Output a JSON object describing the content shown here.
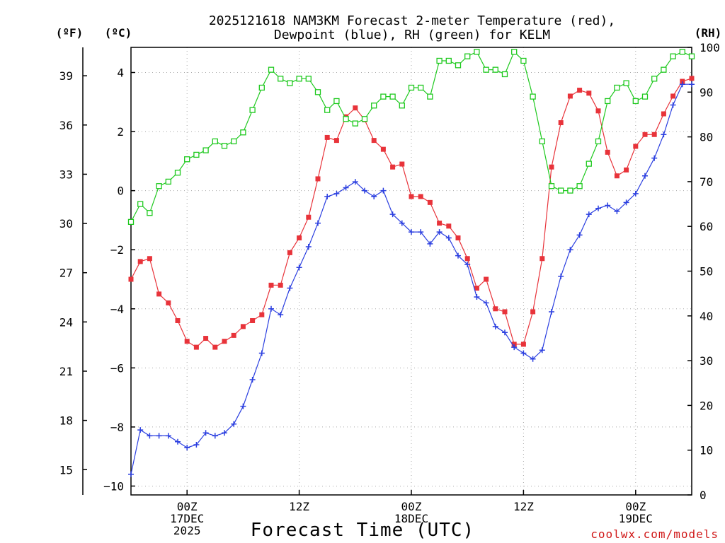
{
  "chart_data": {
    "type": "line",
    "title": [
      "2025121618 NAM3KM Forecast 2-meter Temperature (red),",
      "Dewpoint (blue), RH (green) for KELM"
    ],
    "xlabel": "Forecast Time (UTC)",
    "credit": "coolwx.com/models",
    "x_start_hours": 0,
    "x_end_hours": 60,
    "x_ticks": [
      {
        "hour": 6,
        "lines": [
          "00Z",
          "17DEC",
          "2025"
        ]
      },
      {
        "hour": 18,
        "lines": [
          "12Z"
        ]
      },
      {
        "hour": 30,
        "lines": [
          "00Z",
          "18DEC"
        ]
      },
      {
        "hour": 42,
        "lines": [
          "12Z"
        ]
      },
      {
        "hour": 54,
        "lines": [
          "00Z",
          "19DEC"
        ]
      }
    ],
    "y_axes": {
      "celsius": {
        "label": "(ºC)",
        "range": [
          -10.3,
          4.85
        ],
        "ticks": [
          -10,
          -8,
          -6,
          -4,
          -2,
          0,
          2,
          4
        ],
        "tick_labels": [
          "−10",
          "−8",
          "−6",
          "−4",
          "−2",
          "0",
          "2",
          "4"
        ]
      },
      "fahrenheit": {
        "label": "(ºF)",
        "ticks": [
          15,
          18,
          21,
          24,
          27,
          30,
          33,
          36,
          39
        ]
      },
      "rh": {
        "label": "(RH)",
        "range": [
          0,
          100
        ],
        "ticks": [
          0,
          10,
          20,
          30,
          40,
          50,
          60,
          70,
          80,
          90,
          100
        ]
      }
    },
    "series": [
      {
        "name": "2-meter Temperature",
        "color": "#e8333a",
        "axis": "celsius",
        "marker": "filled-square",
        "values": [
          -3.0,
          -2.4,
          -2.3,
          -3.5,
          -3.8,
          -4.4,
          -5.1,
          -5.3,
          -5.0,
          -5.3,
          -5.1,
          -4.9,
          -4.6,
          -4.4,
          -4.2,
          -3.2,
          -3.2,
          -2.1,
          -1.6,
          -0.9,
          0.4,
          1.8,
          1.7,
          2.5,
          2.8,
          2.4,
          1.7,
          1.4,
          0.8,
          0.9,
          -0.2,
          -0.2,
          -0.4,
          -1.1,
          -1.2,
          -1.6,
          -2.3,
          -3.3,
          -3.0,
          -4.0,
          -4.1,
          -5.2,
          -5.2,
          -4.1,
          -2.3,
          0.8,
          2.3,
          3.2,
          3.4,
          3.3,
          2.7,
          1.3,
          0.5,
          0.7,
          1.5,
          1.9,
          1.9,
          2.6,
          3.2,
          3.7,
          3.8
        ]
      },
      {
        "name": "Dewpoint",
        "color": "#2b3fe0",
        "axis": "celsius",
        "marker": "plus",
        "values": [
          -9.6,
          -8.1,
          -8.3,
          -8.3,
          -8.3,
          -8.5,
          -8.7,
          -8.6,
          -8.2,
          -8.3,
          -8.2,
          -7.9,
          -7.3,
          -6.4,
          -5.5,
          -4.0,
          -4.2,
          -3.3,
          -2.6,
          -1.9,
          -1.1,
          -0.2,
          -0.1,
          0.1,
          0.3,
          0.0,
          -0.2,
          0.0,
          -0.8,
          -1.1,
          -1.4,
          -1.4,
          -1.8,
          -1.4,
          -1.6,
          -2.2,
          -2.5,
          -3.6,
          -3.8,
          -4.6,
          -4.8,
          -5.3,
          -5.5,
          -5.7,
          -5.4,
          -4.1,
          -2.9,
          -2.0,
          -1.5,
          -0.8,
          -0.6,
          -0.5,
          -0.7,
          -0.4,
          -0.1,
          0.5,
          1.1,
          1.9,
          2.9,
          3.6,
          3.6
        ]
      },
      {
        "name": "RH",
        "color": "#1ec91e",
        "axis": "rh",
        "marker": "open-square",
        "values": [
          61,
          65,
          63,
          69,
          70,
          72,
          75,
          76,
          77,
          79,
          78,
          79,
          81,
          86,
          91,
          95,
          93,
          92,
          93,
          93,
          90,
          86,
          88,
          84,
          83,
          84,
          87,
          89,
          89,
          87,
          91,
          91,
          89,
          97,
          97,
          96,
          98,
          99,
          95,
          95,
          94,
          99,
          97,
          89,
          79,
          69,
          68,
          68,
          69,
          74,
          79,
          88,
          91,
          92,
          88,
          89,
          93,
          95,
          98,
          99,
          98
        ]
      }
    ]
  }
}
